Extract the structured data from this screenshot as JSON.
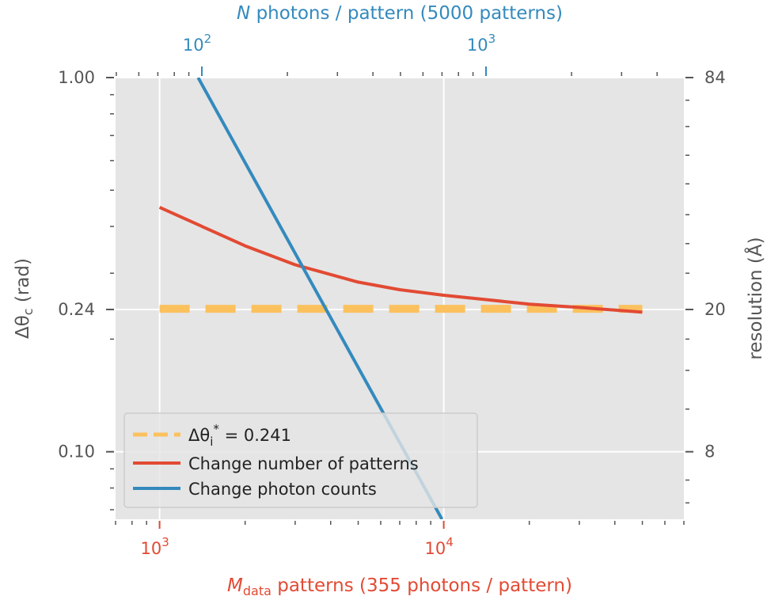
{
  "chart_data": {
    "type": "line",
    "bottom_axis": {
      "label_main": "M",
      "label_sub": "data",
      "label_rest": " patterns (355 photons / pattern)",
      "scale": "log",
      "range": [
        700,
        70000
      ],
      "ticks": [
        {
          "value": 1000,
          "base": "10",
          "exp": "3"
        },
        {
          "value": 10000,
          "base": "10",
          "exp": "4"
        }
      ],
      "color": "#e24a33"
    },
    "top_axis": {
      "label_main": "N",
      "label_rest": " photons / pattern (5000 patterns)",
      "scale": "log",
      "range": [
        49.7,
        4970
      ],
      "ticks": [
        {
          "value": 100,
          "base": "10",
          "exp": "2"
        },
        {
          "value": 1000,
          "base": "10",
          "exp": "3"
        }
      ],
      "color": "#348abd"
    },
    "left_axis": {
      "label_main": "Δθ",
      "label_sub": "c",
      "label_rest": " (rad)",
      "scale": "log",
      "range": [
        0.066,
        1.0
      ],
      "ticks": [
        {
          "value": 1.0,
          "label": "1.00"
        },
        {
          "value": 0.24,
          "label": "0.24"
        },
        {
          "value": 0.1,
          "label": "0.10"
        }
      ]
    },
    "right_axis": {
      "label": "resolution (Å)",
      "ticks": [
        {
          "at_left_value": 1.0,
          "label": "84"
        },
        {
          "at_left_value": 0.24,
          "label": "20"
        },
        {
          "at_left_value": 0.1,
          "label": "8"
        }
      ]
    },
    "series": [
      {
        "name_prefix": "Δθ",
        "name_sub": "i",
        "name_sup": "*",
        "name_rest": " = 0.241",
        "style": "dashed",
        "color": "#fbc15e",
        "x": [
          1000,
          50000
        ],
        "y": [
          0.241,
          0.241
        ]
      },
      {
        "name": "Change number of patterns",
        "style": "solid",
        "color": "#e24a33",
        "x": [
          1000,
          2000,
          3000,
          5000,
          7000,
          10000,
          20000,
          30000,
          50000
        ],
        "y": [
          0.45,
          0.355,
          0.316,
          0.284,
          0.271,
          0.262,
          0.248,
          0.243,
          0.236
        ]
      },
      {
        "name": "Change photon counts",
        "style": "solid",
        "color": "#348abd",
        "x_axis": "top",
        "x": [
          97,
          700
        ],
        "y": [
          1.0,
          0.066
        ]
      }
    ],
    "grid": true,
    "legend_position": "lower-left"
  }
}
